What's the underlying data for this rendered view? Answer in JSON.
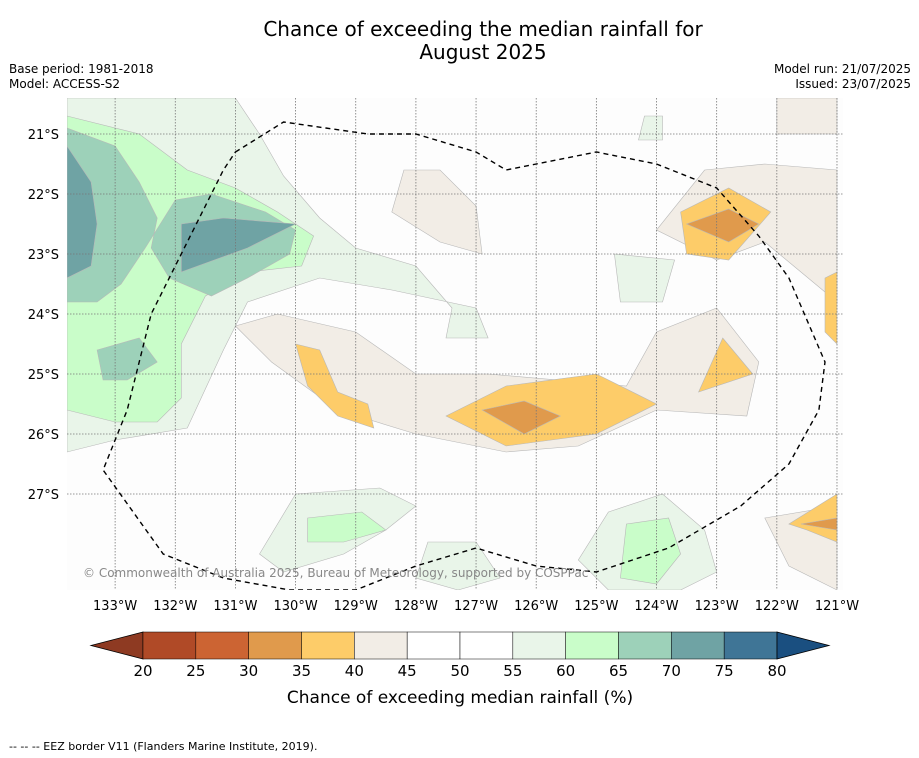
{
  "title_line1": "Chance of exceeding the median rainfall for",
  "title_line2": "August 2025",
  "base_period": "Base period: 1981-2018",
  "model": "Model: ACCESS-S2",
  "model_run": "Model run: 21/07/2025",
  "issued": "Issued: 23/07/2025",
  "attribution": "© Commonwealth of Australia 2025, Bureau of Meteorology, supported by COSPPac",
  "footnote": "--  --  -- EEZ border V11 (Flanders Marine Institute, 2019).",
  "chart_data": {
    "type": "heatmap",
    "title": "Chance of exceeding the median rainfall for August 2025",
    "x_ticks": [
      "133°W",
      "132°W",
      "131°W",
      "130°W",
      "129°W",
      "128°W",
      "127°W",
      "126°W",
      "125°W",
      "124°W",
      "123°W",
      "122°W",
      "121°W"
    ],
    "y_ticks": [
      "21°S",
      "22°S",
      "23°S",
      "24°S",
      "25°S",
      "26°S",
      "27°S"
    ],
    "xlim": [
      -133.8,
      -120.9
    ],
    "ylim": [
      -28.6,
      -20.4
    ],
    "grid": true,
    "colorbar": {
      "label": "Chance of exceeding median rainfall (%)",
      "ticks": [
        "20",
        "25",
        "30",
        "35",
        "40",
        "45",
        "50",
        "55",
        "60",
        "65",
        "70",
        "75",
        "80"
      ],
      "colors": [
        "#8e3a22",
        "#b04a27",
        "#cc6433",
        "#e09a4c",
        "#fdcc69",
        "#f2ede6",
        "#ffffff",
        "#ffffff",
        "#e9f5e9",
        "#c9fdc9",
        "#9dd1b9",
        "#6fa3a4",
        "#3f7596",
        "#1a4f80"
      ],
      "extend": "both"
    },
    "regions": [
      {
        "level": 60,
        "points": [
          [
            -133.8,
            -20.4
          ],
          [
            -131.0,
            -20.4
          ],
          [
            -130.6,
            -21.0
          ],
          [
            -130.2,
            -21.7
          ],
          [
            -129.6,
            -22.4
          ],
          [
            -129.0,
            -22.9
          ],
          [
            -128.0,
            -23.2
          ],
          [
            -127.4,
            -23.9
          ],
          [
            -127.5,
            -24.4
          ],
          [
            -126.8,
            -24.4
          ],
          [
            -127.0,
            -23.9
          ],
          [
            -128.4,
            -23.6
          ],
          [
            -129.6,
            -23.4
          ],
          [
            -130.8,
            -23.8
          ],
          [
            -131.2,
            -24.6
          ],
          [
            -131.8,
            -25.9
          ],
          [
            -133.0,
            -26.1
          ],
          [
            -133.8,
            -26.3
          ]
        ]
      },
      {
        "level": 65,
        "points": [
          [
            -133.8,
            -20.7
          ],
          [
            -132.6,
            -21.0
          ],
          [
            -131.8,
            -21.6
          ],
          [
            -131.0,
            -21.9
          ],
          [
            -130.3,
            -22.3
          ],
          [
            -129.7,
            -22.7
          ],
          [
            -129.9,
            -23.2
          ],
          [
            -130.8,
            -23.3
          ],
          [
            -131.5,
            -23.7
          ],
          [
            -131.9,
            -24.5
          ],
          [
            -131.9,
            -25.4
          ],
          [
            -132.3,
            -25.8
          ],
          [
            -133.0,
            -25.8
          ],
          [
            -133.8,
            -25.6
          ]
        ]
      },
      {
        "level": 70,
        "points": [
          [
            -133.8,
            -20.9
          ],
          [
            -133.0,
            -21.2
          ],
          [
            -132.6,
            -21.8
          ],
          [
            -132.3,
            -22.4
          ],
          [
            -132.4,
            -22.9
          ],
          [
            -132.1,
            -23.4
          ],
          [
            -131.4,
            -23.7
          ],
          [
            -130.8,
            -23.4
          ],
          [
            -130.1,
            -23.0
          ],
          [
            -130.0,
            -22.6
          ],
          [
            -130.5,
            -22.3
          ],
          [
            -131.4,
            -22.0
          ],
          [
            -132.0,
            -22.1
          ],
          [
            -132.5,
            -22.9
          ],
          [
            -132.9,
            -23.5
          ],
          [
            -133.3,
            -23.8
          ],
          [
            -133.8,
            -23.8
          ]
        ]
      },
      {
        "level": 75,
        "points": [
          [
            -133.8,
            -21.2
          ],
          [
            -133.4,
            -21.8
          ],
          [
            -133.3,
            -22.5
          ],
          [
            -133.4,
            -23.2
          ],
          [
            -133.8,
            -23.4
          ]
        ]
      },
      {
        "level": 75,
        "points": [
          [
            -131.9,
            -22.5
          ],
          [
            -131.2,
            -22.4
          ],
          [
            -130.0,
            -22.5
          ],
          [
            -130.8,
            -22.9
          ],
          [
            -131.9,
            -23.3
          ]
        ]
      },
      {
        "level": 70,
        "points": [
          [
            -133.3,
            -24.6
          ],
          [
            -132.6,
            -24.4
          ],
          [
            -132.3,
            -24.8
          ],
          [
            -132.8,
            -25.1
          ],
          [
            -133.2,
            -25.1
          ]
        ]
      },
      {
        "level": 60,
        "points": [
          [
            -130.0,
            -27.0
          ],
          [
            -128.6,
            -26.9
          ],
          [
            -128.0,
            -27.2
          ],
          [
            -128.5,
            -27.6
          ],
          [
            -129.2,
            -28.0
          ],
          [
            -130.2,
            -28.3
          ],
          [
            -130.6,
            -28.0
          ]
        ]
      },
      {
        "level": 65,
        "points": [
          [
            -129.8,
            -27.4
          ],
          [
            -128.9,
            -27.3
          ],
          [
            -128.5,
            -27.6
          ],
          [
            -129.2,
            -27.8
          ],
          [
            -129.8,
            -27.8
          ]
        ]
      },
      {
        "level": 60,
        "points": [
          [
            -124.8,
            -27.3
          ],
          [
            -123.9,
            -27.0
          ],
          [
            -123.2,
            -27.6
          ],
          [
            -123.0,
            -28.3
          ],
          [
            -123.6,
            -28.6
          ],
          [
            -124.8,
            -28.6
          ],
          [
            -125.3,
            -28.1
          ]
        ]
      },
      {
        "level": 65,
        "points": [
          [
            -124.5,
            -27.5
          ],
          [
            -123.8,
            -27.4
          ],
          [
            -123.6,
            -28.0
          ],
          [
            -124.0,
            -28.5
          ],
          [
            -124.6,
            -28.4
          ]
        ]
      },
      {
        "level": 60,
        "points": [
          [
            -127.8,
            -27.8
          ],
          [
            -127.0,
            -27.8
          ],
          [
            -126.6,
            -28.4
          ],
          [
            -127.3,
            -28.6
          ],
          [
            -128.0,
            -28.4
          ]
        ]
      },
      {
        "level": 60,
        "points": [
          [
            -124.7,
            -23.0
          ],
          [
            -123.7,
            -23.1
          ],
          [
            -123.9,
            -23.8
          ],
          [
            -124.6,
            -23.8
          ]
        ]
      },
      {
        "level": 60,
        "points": [
          [
            -124.2,
            -20.7
          ],
          [
            -123.9,
            -20.7
          ],
          [
            -123.9,
            -21.1
          ],
          [
            -124.3,
            -21.1
          ]
        ]
      },
      {
        "level": 45,
        "points": [
          [
            -128.2,
            -21.6
          ],
          [
            -127.6,
            -21.6
          ],
          [
            -127.0,
            -22.2
          ],
          [
            -126.9,
            -23.0
          ],
          [
            -127.6,
            -22.8
          ],
          [
            -128.4,
            -22.3
          ]
        ]
      },
      {
        "level": 45,
        "points": [
          [
            -122.0,
            -20.4
          ],
          [
            -121.0,
            -20.4
          ],
          [
            -121.0,
            -21.0
          ],
          [
            -122.0,
            -21.0
          ]
        ]
      },
      {
        "level": 45,
        "points": [
          [
            -123.2,
            -21.6
          ],
          [
            -122.2,
            -21.5
          ],
          [
            -121.0,
            -21.6
          ],
          [
            -121.0,
            -23.8
          ],
          [
            -121.6,
            -23.3
          ],
          [
            -122.2,
            -22.8
          ],
          [
            -123.0,
            -23.1
          ],
          [
            -124.0,
            -22.6
          ]
        ]
      },
      {
        "level": 45,
        "points": [
          [
            -130.3,
            -24.0
          ],
          [
            -129.0,
            -24.3
          ],
          [
            -128.0,
            -25.0
          ],
          [
            -126.8,
            -25.0
          ],
          [
            -124.5,
            -25.2
          ],
          [
            -124.0,
            -24.3
          ],
          [
            -123.0,
            -23.9
          ],
          [
            -122.3,
            -24.8
          ],
          [
            -122.5,
            -25.7
          ],
          [
            -124.0,
            -25.6
          ],
          [
            -125.3,
            -26.2
          ],
          [
            -126.5,
            -26.3
          ],
          [
            -128.0,
            -26.0
          ],
          [
            -129.3,
            -25.6
          ],
          [
            -130.4,
            -24.8
          ],
          [
            -131.0,
            -24.2
          ]
        ]
      },
      {
        "level": 45,
        "points": [
          [
            -122.2,
            -27.4
          ],
          [
            -121.0,
            -27.2
          ],
          [
            -121.0,
            -28.6
          ],
          [
            -121.8,
            -28.2
          ]
        ]
      },
      {
        "level": 40,
        "points": [
          [
            -123.6,
            -22.3
          ],
          [
            -122.8,
            -21.9
          ],
          [
            -122.1,
            -22.3
          ],
          [
            -122.8,
            -23.1
          ],
          [
            -123.5,
            -23.0
          ]
        ]
      },
      {
        "level": 40,
        "points": [
          [
            -130.0,
            -24.5
          ],
          [
            -129.6,
            -24.6
          ],
          [
            -129.3,
            -25.3
          ],
          [
            -128.8,
            -25.5
          ],
          [
            -128.7,
            -25.9
          ],
          [
            -129.3,
            -25.7
          ],
          [
            -129.8,
            -25.2
          ]
        ]
      },
      {
        "level": 40,
        "points": [
          [
            -127.5,
            -25.7
          ],
          [
            -126.5,
            -25.2
          ],
          [
            -125.0,
            -25.0
          ],
          [
            -124.0,
            -25.5
          ],
          [
            -125.0,
            -26.0
          ],
          [
            -126.5,
            -26.2
          ]
        ]
      },
      {
        "level": 40,
        "points": [
          [
            -122.9,
            -24.4
          ],
          [
            -122.4,
            -25.0
          ],
          [
            -123.3,
            -25.3
          ]
        ]
      },
      {
        "level": 40,
        "points": [
          [
            -121.2,
            -23.4
          ],
          [
            -121.0,
            -23.3
          ],
          [
            -121.0,
            -24.5
          ],
          [
            -121.2,
            -24.3
          ]
        ]
      },
      {
        "level": 40,
        "points": [
          [
            -121.8,
            -27.5
          ],
          [
            -121.0,
            -27.0
          ],
          [
            -121.0,
            -27.8
          ],
          [
            -121.5,
            -27.6
          ]
        ]
      },
      {
        "level": 35,
        "points": [
          [
            -123.5,
            -22.5
          ],
          [
            -122.8,
            -22.25
          ],
          [
            -122.3,
            -22.5
          ],
          [
            -122.8,
            -22.8
          ]
        ]
      },
      {
        "level": 35,
        "points": [
          [
            -126.9,
            -25.6
          ],
          [
            -126.2,
            -25.45
          ],
          [
            -125.6,
            -25.7
          ],
          [
            -126.2,
            -26.0
          ]
        ]
      },
      {
        "level": 35,
        "points": [
          [
            -121.6,
            -27.5
          ],
          [
            -121.0,
            -27.4
          ],
          [
            -121.0,
            -27.6
          ]
        ]
      }
    ],
    "eez_border": [
      [
        -131.0,
        -21.3
      ],
      [
        -130.2,
        -20.8
      ],
      [
        -129.5,
        -20.9
      ],
      [
        -128.8,
        -21.0
      ],
      [
        -128.0,
        -21.0
      ],
      [
        -127.0,
        -21.3
      ],
      [
        -126.5,
        -21.6
      ],
      [
        -126.0,
        -21.5
      ],
      [
        -125.0,
        -21.3
      ],
      [
        -124.0,
        -21.5
      ],
      [
        -123.0,
        -21.9
      ],
      [
        -122.3,
        -22.7
      ],
      [
        -121.8,
        -23.4
      ],
      [
        -121.2,
        -24.8
      ],
      [
        -121.3,
        -25.6
      ],
      [
        -121.8,
        -26.5
      ],
      [
        -122.6,
        -27.2
      ],
      [
        -123.8,
        -27.9
      ],
      [
        -125.0,
        -28.3
      ],
      [
        -126.0,
        -28.2
      ],
      [
        -127.0,
        -27.9
      ],
      [
        -128.0,
        -28.2
      ],
      [
        -129.0,
        -28.6
      ],
      [
        -130.1,
        -28.6
      ],
      [
        -131.2,
        -28.4
      ],
      [
        -132.2,
        -28.0
      ],
      [
        -133.2,
        -26.6
      ],
      [
        -132.8,
        -25.6
      ],
      [
        -132.4,
        -24.0
      ],
      [
        -131.6,
        -22.4
      ],
      [
        -131.2,
        -21.6
      ]
    ]
  }
}
